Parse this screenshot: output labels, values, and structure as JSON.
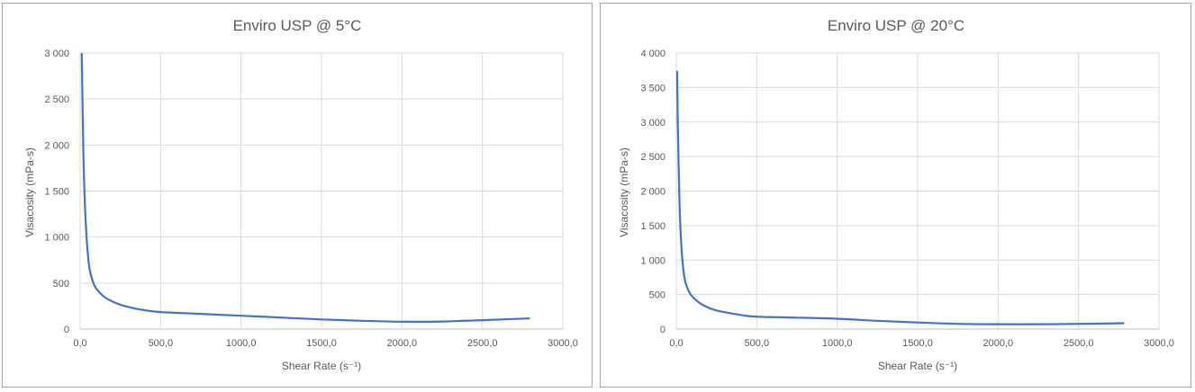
{
  "chart_data": [
    {
      "type": "line",
      "title": "Enviro USP @ 5°C",
      "xlabel": "Shear Rate (s⁻¹)",
      "ylabel": "Visacosity (mPa-s)",
      "xlim": [
        0,
        3000
      ],
      "ylim": [
        0,
        3000
      ],
      "x_ticks": [
        "0,0",
        "500,0",
        "1000,0",
        "1500,0",
        "2000,0",
        "2500,0",
        "3000,0"
      ],
      "y_ticks": [
        "0",
        "500",
        "1 000",
        "1 500",
        "2 000",
        "2 500",
        "3 000"
      ],
      "grid": true,
      "legend": "none",
      "series_color": "#4472c4",
      "series": [
        {
          "x": [
            10,
            20,
            30,
            40,
            50,
            60,
            80,
            100,
            150,
            200,
            250,
            300,
            400,
            500,
            750,
            1000,
            1250,
            1500,
            1750,
            2000,
            2250,
            2500,
            2790
          ],
          "y": [
            2990,
            1900,
            1330,
            1000,
            780,
            640,
            510,
            440,
            350,
            300,
            265,
            240,
            205,
            185,
            165,
            145,
            125,
            105,
            90,
            80,
            82,
            97,
            115
          ]
        }
      ]
    },
    {
      "type": "line",
      "title": "Enviro USP @ 20°C",
      "xlabel": "Shear Rate (s⁻¹)",
      "ylabel": "Visacosity (mPa-s)",
      "xlim": [
        0,
        3000
      ],
      "ylim": [
        0,
        4000
      ],
      "x_ticks": [
        "0,0",
        "500,0",
        "1000,0",
        "1500,0",
        "2000,0",
        "2500,0",
        "3000,0"
      ],
      "y_ticks": [
        "0",
        "500",
        "1 000",
        "1 500",
        "2 000",
        "2 500",
        "3 000",
        "3 500",
        "4 000"
      ],
      "grid": true,
      "legend": "none",
      "series_color": "#4472c4",
      "series": [
        {
          "x": [
            5,
            10,
            20,
            30,
            40,
            50,
            60,
            80,
            100,
            150,
            200,
            250,
            300,
            400,
            500,
            750,
            1000,
            1250,
            1500,
            1750,
            2000,
            2250,
            2500,
            2780
          ],
          "y": [
            3730,
            2900,
            1800,
            1250,
            950,
            760,
            650,
            540,
            470,
            370,
            310,
            270,
            245,
            205,
            180,
            165,
            150,
            120,
            95,
            75,
            70,
            70,
            75,
            85
          ]
        }
      ]
    }
  ]
}
